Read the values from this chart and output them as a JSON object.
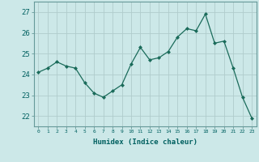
{
  "x": [
    0,
    1,
    2,
    3,
    4,
    5,
    6,
    7,
    8,
    9,
    10,
    11,
    12,
    13,
    14,
    15,
    16,
    17,
    18,
    19,
    20,
    21,
    22,
    23
  ],
  "y": [
    24.1,
    24.3,
    24.6,
    24.4,
    24.3,
    23.6,
    23.1,
    22.9,
    23.2,
    23.5,
    24.5,
    25.3,
    24.7,
    24.8,
    25.1,
    25.8,
    26.2,
    26.1,
    26.9,
    25.5,
    25.6,
    24.3,
    22.9,
    21.9
  ],
  "line_color": "#1a6b5a",
  "marker": "D",
  "marker_size": 2,
  "bg_color": "#cce8e8",
  "grid_color": "#b0cccc",
  "xlabel": "Humidex (Indice chaleur)",
  "ylim": [
    21.5,
    27.5
  ],
  "xlim": [
    -0.5,
    23.5
  ],
  "yticks": [
    22,
    23,
    24,
    25,
    26,
    27
  ],
  "xticks": [
    0,
    1,
    2,
    3,
    4,
    5,
    6,
    7,
    8,
    9,
    10,
    11,
    12,
    13,
    14,
    15,
    16,
    17,
    18,
    19,
    20,
    21,
    22,
    23
  ],
  "tick_label_color": "#006060",
  "xlabel_color": "#006060",
  "spine_color": "#669999"
}
